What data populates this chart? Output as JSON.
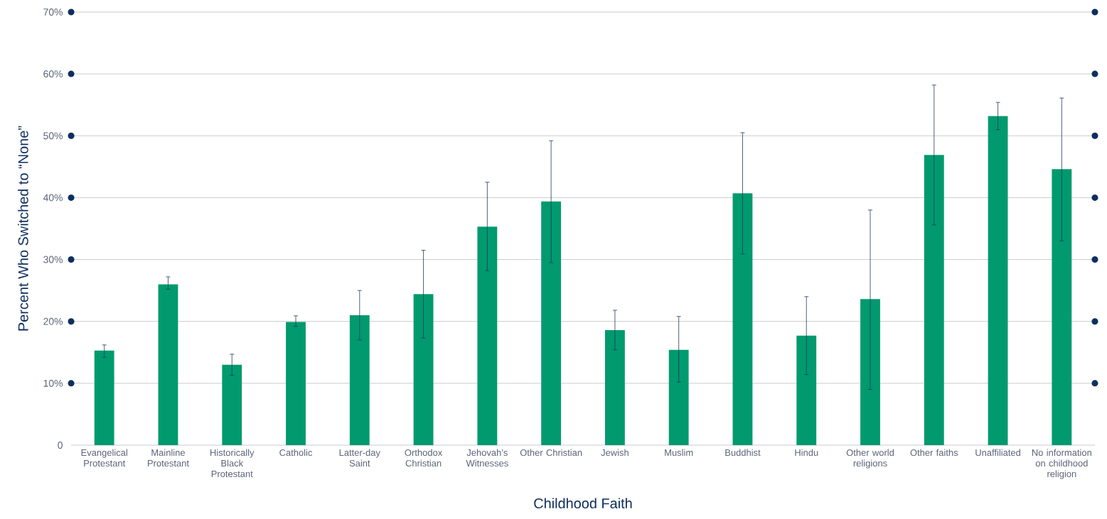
{
  "chart_data": {
    "type": "bar",
    "xlabel": "Childhood Faith",
    "ylabel": "Percent Who Switched to “None”",
    "categories": [
      "Evangelical Protestant",
      "Mainline Protestant",
      "Historically Black Protestant",
      "Catholic",
      "Latter-day Saint",
      "Orthodox Christian",
      "Jehovah’s Witnesses",
      "Other Christian",
      "Jewish",
      "Muslim",
      "Buddhist",
      "Hindu",
      "Other world religions",
      "Other faiths",
      "Unaffiliated",
      "No information on childhood religion"
    ],
    "values": [
      15.3,
      26.0,
      13.0,
      19.9,
      21.0,
      24.4,
      35.3,
      39.4,
      18.6,
      15.4,
      40.7,
      17.7,
      23.6,
      46.9,
      53.2,
      44.6
    ],
    "errors": [
      [
        14.2,
        16.2
      ],
      [
        25.2,
        27.2
      ],
      [
        11.3,
        14.7
      ],
      [
        19.2,
        20.9
      ],
      [
        17.0,
        25.0
      ],
      [
        17.3,
        31.5
      ],
      [
        28.2,
        42.5
      ],
      [
        29.5,
        49.2
      ],
      [
        15.4,
        21.8
      ],
      [
        10.2,
        20.8
      ],
      [
        30.9,
        50.5
      ],
      [
        11.4,
        24.0
      ],
      [
        9.0,
        38.0
      ],
      [
        35.6,
        58.2
      ],
      [
        51.0,
        55.4
      ],
      [
        33.0,
        56.1
      ]
    ],
    "color": "#009a6e",
    "ylim": [
      0,
      70
    ],
    "yticks": [
      0,
      {
        "value": 10,
        "label": "10%"
      },
      {
        "value": 20,
        "label": "20%"
      },
      {
        "value": 30,
        "label": "30%"
      },
      {
        "value": 40,
        "label": "40%"
      },
      {
        "value": 50,
        "label": "50%"
      },
      {
        "value": 60,
        "label": "60%"
      },
      {
        "value": 70,
        "label": "70%"
      }
    ],
    "grid": "y"
  }
}
